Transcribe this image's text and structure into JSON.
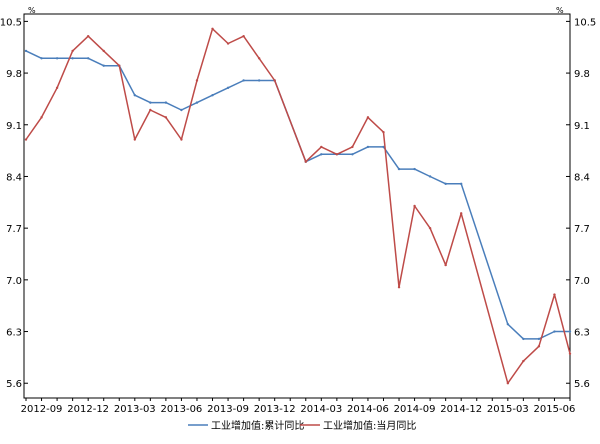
{
  "chart_data": {
    "type": "line",
    "unit_left": "%",
    "unit_right": "%",
    "x": [
      "2012-08",
      "2012-09",
      "2012-10",
      "2012-11",
      "2012-12",
      "2013-01",
      "2013-02",
      "2013-03",
      "2013-04",
      "2013-05",
      "2013-06",
      "2013-07",
      "2013-08",
      "2013-09",
      "2013-10",
      "2013-11",
      "2013-12",
      "2014-01",
      "2014-02",
      "2014-03",
      "2014-04",
      "2014-05",
      "2014-06",
      "2014-07",
      "2014-08",
      "2014-09",
      "2014-10",
      "2014-11",
      "2014-12",
      "2015-01",
      "2015-02",
      "2015-03",
      "2015-04",
      "2015-05",
      "2015-06",
      "2015-07"
    ],
    "xtick_labels": [
      {
        "label": "2012-09",
        "index": 1
      },
      {
        "label": "2012-12",
        "index": 4
      },
      {
        "label": "2013-03",
        "index": 7
      },
      {
        "label": "2013-06",
        "index": 10
      },
      {
        "label": "2013-09",
        "index": 13
      },
      {
        "label": "2013-12",
        "index": 16
      },
      {
        "label": "2014-03",
        "index": 19
      },
      {
        "label": "2014-06",
        "index": 22
      },
      {
        "label": "2014-09",
        "index": 25
      },
      {
        "label": "2014-12",
        "index": 28
      },
      {
        "label": "2015-03",
        "index": 31
      },
      {
        "label": "2015-06",
        "index": 34
      }
    ],
    "yticks": [
      5.6,
      6.3,
      7.0,
      7.7,
      8.4,
      9.1,
      9.8,
      10.5
    ],
    "ytick_labels": [
      "5.6",
      "6.3",
      "7.0",
      "7.7",
      "8.4",
      "9.1",
      "9.8",
      "10.5"
    ],
    "ylim": [
      5.4,
      10.6
    ],
    "grid": false,
    "legend_position": "bottom",
    "series": [
      {
        "name": "工业增加值:累计同比",
        "color": "#4a7ebb",
        "values": [
          10.1,
          10.0,
          10.0,
          10.0,
          10.0,
          9.9,
          9.9,
          9.5,
          9.4,
          9.4,
          9.3,
          9.4,
          9.5,
          9.6,
          9.7,
          9.7,
          9.7,
          null,
          8.6,
          8.7,
          8.7,
          8.7,
          8.8,
          8.8,
          8.5,
          8.5,
          8.4,
          8.3,
          8.3,
          null,
          null,
          6.4,
          6.2,
          6.2,
          6.3,
          6.3
        ]
      },
      {
        "name": "工业增加值:当月同比",
        "color": "#be4b48",
        "values": [
          8.9,
          9.2,
          9.6,
          10.1,
          10.3,
          10.1,
          9.9,
          8.9,
          9.3,
          9.2,
          8.9,
          9.7,
          10.4,
          10.2,
          10.3,
          10.0,
          9.7,
          null,
          8.6,
          8.8,
          8.7,
          8.8,
          9.2,
          9.0,
          6.9,
          8.0,
          7.7,
          7.2,
          7.9,
          null,
          null,
          5.6,
          5.9,
          6.1,
          6.8,
          6.0
        ]
      }
    ]
  }
}
